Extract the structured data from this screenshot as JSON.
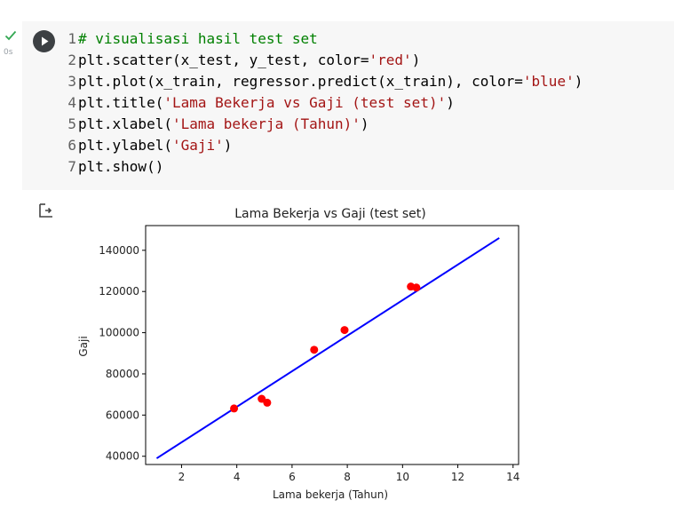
{
  "cell": {
    "status_time": "0s",
    "code_lines": [
      {
        "n": "1",
        "parts": [
          {
            "t": "# visualisasi hasil test set",
            "c": "cm"
          }
        ]
      },
      {
        "n": "2",
        "parts": [
          {
            "t": "plt.scatter(x_test, y_test, color=",
            "c": ""
          },
          {
            "t": "'red'",
            "c": "st"
          },
          {
            "t": ")",
            "c": ""
          }
        ]
      },
      {
        "n": "3",
        "parts": [
          {
            "t": "plt.plot(x_train, regressor.predict(x_train), color=",
            "c": ""
          },
          {
            "t": "'blue'",
            "c": "st"
          },
          {
            "t": ")",
            "c": ""
          }
        ]
      },
      {
        "n": "4",
        "parts": [
          {
            "t": "plt.title(",
            "c": ""
          },
          {
            "t": "'Lama Bekerja vs Gaji (test set)'",
            "c": "st"
          },
          {
            "t": ")",
            "c": ""
          }
        ]
      },
      {
        "n": "5",
        "parts": [
          {
            "t": "plt.xlabel(",
            "c": ""
          },
          {
            "t": "'Lama bekerja (Tahun)'",
            "c": "st"
          },
          {
            "t": ")",
            "c": ""
          }
        ]
      },
      {
        "n": "6",
        "parts": [
          {
            "t": "plt.ylabel(",
            "c": ""
          },
          {
            "t": "'Gaji'",
            "c": "st"
          },
          {
            "t": ")",
            "c": ""
          }
        ]
      },
      {
        "n": "7",
        "parts": [
          {
            "t": "plt.show()",
            "c": ""
          }
        ]
      }
    ]
  },
  "colors": {
    "code_bg": "#f7f7f7",
    "comment": "#008000",
    "string": "#a31515",
    "check": "#34a853",
    "run_button": "#3c4043"
  },
  "chart_data": {
    "type": "scatter",
    "title": "Lama Bekerja vs Gaji (test set)",
    "xlabel": "Lama bekerja (Tahun)",
    "ylabel": "Gaji",
    "xlim": [
      0.7,
      14.2
    ],
    "ylim": [
      36000,
      152000
    ],
    "xticks": [
      2,
      4,
      6,
      8,
      10,
      12,
      14
    ],
    "yticks": [
      40000,
      60000,
      80000,
      100000,
      120000,
      140000
    ],
    "grid": false,
    "scatter": {
      "color": "#ff0000",
      "x": [
        3.9,
        4.9,
        5.1,
        6.8,
        7.9,
        10.3,
        10.5
      ],
      "y": [
        63200,
        67900,
        66000,
        91700,
        101300,
        122400,
        121900
      ]
    },
    "line": {
      "color": "#0000ff",
      "x": [
        1.1,
        13.5
      ],
      "y": [
        39000,
        146000
      ]
    }
  }
}
